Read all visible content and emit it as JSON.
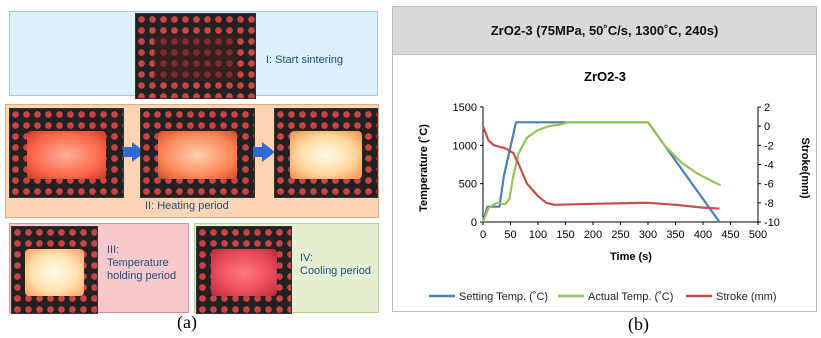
{
  "panel_a": {
    "stage1_label": "I: Start sintering",
    "stage2_label": "II: Heating period",
    "stage3_label": "III:\nTemperature\nholding period",
    "stage4_label": "IV:\nCooling period",
    "caption": "(a)"
  },
  "panel_b": {
    "header": "ZrO2-3 (75MPa, 50˚C/s, 1300˚C, 240s)",
    "caption": "(b)"
  },
  "chart_data": {
    "type": "line",
    "title": "ZrO2-3",
    "xlabel": "Time (s)",
    "ylabel": "Temperature (˚C)",
    "ylabel_right": "Stroke(mm)",
    "xlim": [
      0,
      500
    ],
    "ylim": [
      0,
      1500
    ],
    "ylim_right": [
      -10,
      2
    ],
    "x_ticks": [
      0,
      50,
      100,
      150,
      200,
      250,
      300,
      350,
      400,
      450,
      500
    ],
    "y_ticks": [
      0,
      500,
      1000,
      1500
    ],
    "y_ticks_right": [
      -10,
      -8,
      -6,
      -4,
      -2,
      0,
      2
    ],
    "legend_position": "bottom",
    "grid": false,
    "series": [
      {
        "name": "Setting Temp. (˚C)",
        "axis": "left",
        "color": "#4a7ebb",
        "x": [
          0,
          8,
          30,
          38,
          60,
          300,
          430
        ],
        "y": [
          0,
          200,
          200,
          600,
          1300,
          1300,
          0
        ]
      },
      {
        "name": "Actual Temp. (˚C)",
        "axis": "left",
        "color": "#98c35a",
        "x": [
          0,
          10,
          25,
          40,
          48,
          55,
          65,
          80,
          100,
          120,
          140,
          155,
          165,
          300,
          330,
          360,
          390,
          420,
          432
        ],
        "y": [
          0,
          180,
          250,
          230,
          300,
          600,
          900,
          1100,
          1200,
          1250,
          1270,
          1300,
          1300,
          1300,
          1000,
          780,
          630,
          520,
          480
        ]
      },
      {
        "name": "Stroke (mm)",
        "axis": "right",
        "color": "#c0504d",
        "x": [
          0,
          10,
          20,
          40,
          55,
          65,
          80,
          100,
          115,
          130,
          200,
          300,
          350,
          400,
          430
        ],
        "y": [
          0,
          -1.5,
          -2.0,
          -2.3,
          -2.8,
          -4.0,
          -6.0,
          -7.3,
          -8.0,
          -8.2,
          -8.1,
          -8.0,
          -8.2,
          -8.5,
          -8.6
        ]
      }
    ]
  }
}
